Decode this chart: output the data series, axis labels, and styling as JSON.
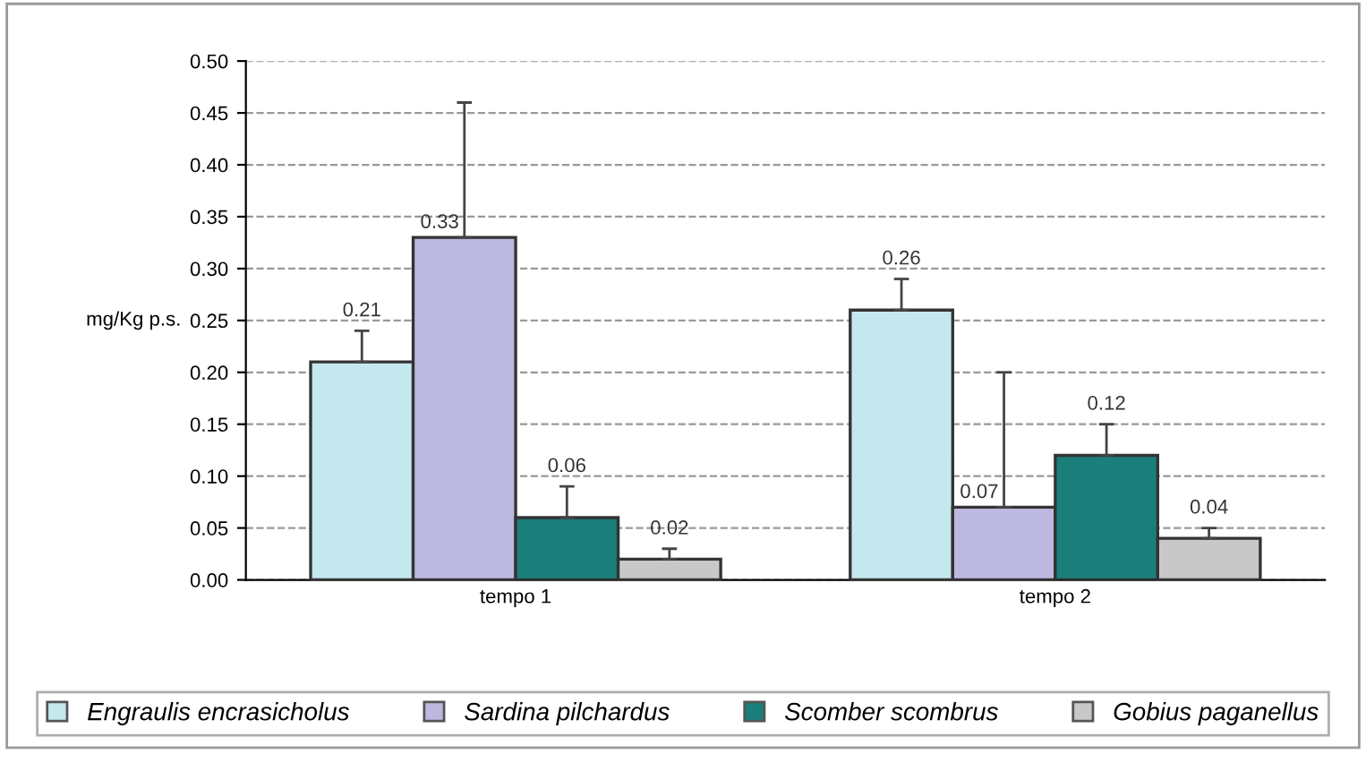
{
  "chart_data": {
    "type": "bar",
    "ylabel": "mg/Kg p.s.",
    "categories": [
      "tempo 1",
      "tempo 2"
    ],
    "series": [
      {
        "name": "Engraulis encrasicholus",
        "color": "#c5e8ef",
        "values": [
          0.21,
          0.26
        ],
        "errors": [
          [
            0.21,
            0.24
          ],
          [
            0.26,
            0.29
          ]
        ]
      },
      {
        "name": "Sardina pilchardus",
        "color": "#bdb8e0",
        "values": [
          0.33,
          0.07
        ],
        "errors": [
          [
            0.33,
            0.46
          ],
          [
            0.07,
            0.2
          ]
        ]
      },
      {
        "name": "Scomber scombrus",
        "color": "#1a7f7a",
        "values": [
          0.06,
          0.12
        ],
        "errors": [
          [
            0.06,
            0.09
          ],
          [
            0.12,
            0.15
          ]
        ]
      },
      {
        "name": "Gobius paganellus",
        "color": "#c8c8c8",
        "values": [
          0.02,
          0.04
        ],
        "errors": [
          [
            0.02,
            0.03
          ],
          [
            0.04,
            0.05
          ]
        ]
      }
    ],
    "ylim": [
      0,
      0.5
    ],
    "yticks": [
      {
        "value": 0,
        "label": "0.00"
      },
      {
        "value": 0.05,
        "label": "0.05"
      },
      {
        "value": 0.1,
        "label": "0.10"
      },
      {
        "value": 0.15,
        "label": "0.15"
      },
      {
        "value": 0.2,
        "label": "0.20"
      },
      {
        "value": 0.25,
        "label": "0.25"
      },
      {
        "value": 0.3,
        "label": "0.30"
      },
      {
        "value": 0.35,
        "label": "0.35"
      },
      {
        "value": 0.4,
        "label": "0.40"
      },
      {
        "value": 0.45,
        "label": "0.45"
      },
      {
        "value": 0.5,
        "label": "0.50"
      }
    ],
    "grid": "y",
    "line_style": "dashed",
    "data_labels": true,
    "legend": "bottom"
  }
}
